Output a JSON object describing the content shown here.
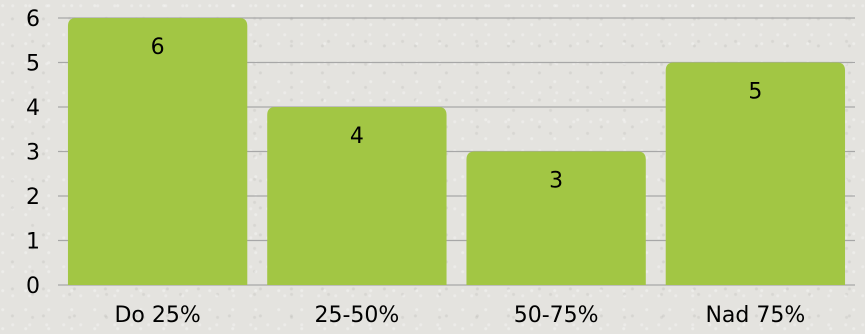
{
  "chart_data": {
    "type": "bar",
    "categories": [
      "Do 25%",
      "25-50%",
      "50-75%",
      "Nad 75%"
    ],
    "values": [
      6,
      4,
      3,
      5
    ],
    "ylim": [
      0,
      6
    ],
    "yticks": [
      0,
      1,
      2,
      3,
      4,
      5,
      6
    ],
    "grid": true,
    "data_labels": true,
    "bar_color": "#a2c644",
    "grid_color": "#a7a7a7"
  }
}
